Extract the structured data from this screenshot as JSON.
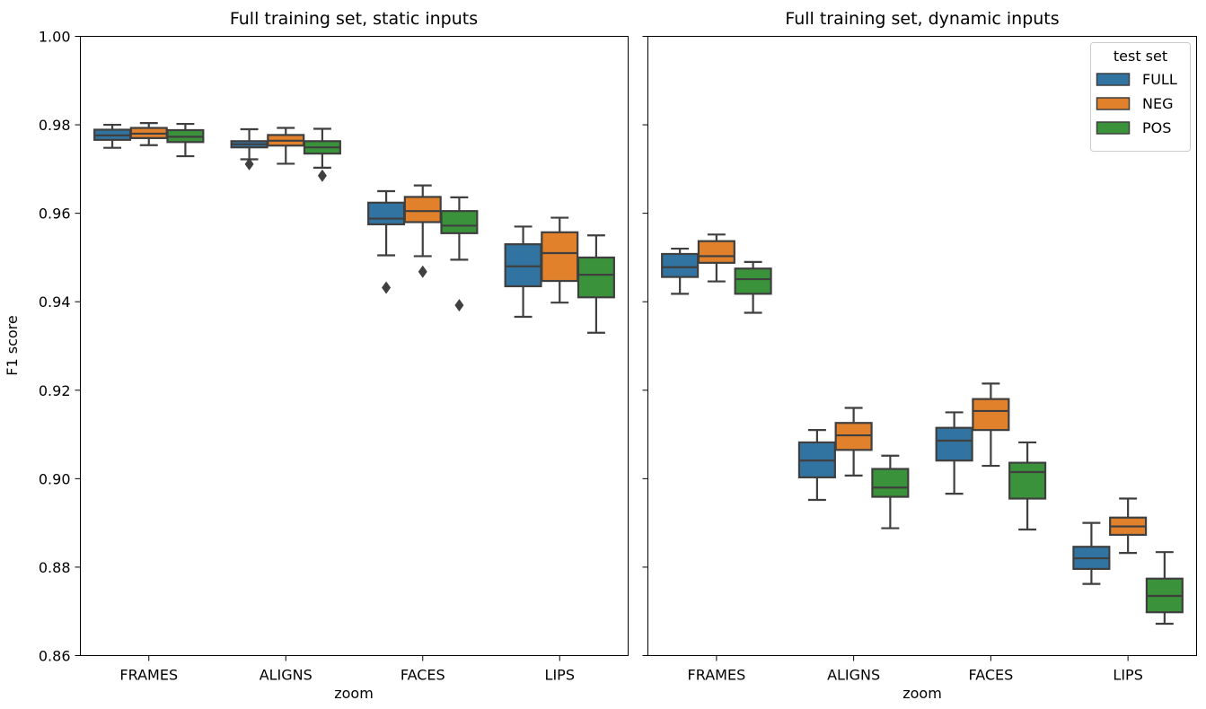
{
  "chart_data": [
    {
      "type": "box",
      "title": "Full training set, static inputs",
      "xlabel": "zoom",
      "ylabel": "F1 score",
      "ylim": [
        0.86,
        1.0
      ],
      "yticks": [
        "0.86",
        "0.88",
        "0.90",
        "0.92",
        "0.94",
        "0.96",
        "0.98",
        "1.00"
      ],
      "categories": [
        "FRAMES",
        "ALIGNS",
        "FACES",
        "LIPS"
      ],
      "series": [
        {
          "name": "FULL",
          "boxes": [
            {
              "whislo": 0.9748,
              "q1": 0.9766,
              "med": 0.9776,
              "q3": 0.9789,
              "whishi": 0.98,
              "fliers": []
            },
            {
              "whislo": 0.9722,
              "q1": 0.9749,
              "med": 0.9756,
              "q3": 0.9763,
              "whishi": 0.979,
              "fliers": [
                0.9711
              ]
            },
            {
              "whislo": 0.9505,
              "q1": 0.9575,
              "med": 0.9588,
              "q3": 0.9624,
              "whishi": 0.965,
              "fliers": [
                0.9432
              ]
            },
            {
              "whislo": 0.9366,
              "q1": 0.9435,
              "med": 0.948,
              "q3": 0.953,
              "whishi": 0.957,
              "fliers": []
            }
          ]
        },
        {
          "name": "NEG",
          "boxes": [
            {
              "whislo": 0.9754,
              "q1": 0.977,
              "med": 0.978,
              "q3": 0.9793,
              "whishi": 0.9804,
              "fliers": []
            },
            {
              "whislo": 0.9712,
              "q1": 0.9753,
              "med": 0.9764,
              "q3": 0.9777,
              "whishi": 0.9793,
              "fliers": []
            },
            {
              "whislo": 0.9503,
              "q1": 0.958,
              "med": 0.9605,
              "q3": 0.9637,
              "whishi": 0.9663,
              "fliers": [
                0.9468
              ]
            },
            {
              "whislo": 0.9398,
              "q1": 0.9447,
              "med": 0.951,
              "q3": 0.9557,
              "whishi": 0.959,
              "fliers": []
            }
          ]
        },
        {
          "name": "POS",
          "boxes": [
            {
              "whislo": 0.9729,
              "q1": 0.9761,
              "med": 0.9773,
              "q3": 0.9788,
              "whishi": 0.9802,
              "fliers": []
            },
            {
              "whislo": 0.9703,
              "q1": 0.9735,
              "med": 0.9749,
              "q3": 0.9763,
              "whishi": 0.9791,
              "fliers": [
                0.9685
              ]
            },
            {
              "whislo": 0.9495,
              "q1": 0.9555,
              "med": 0.9572,
              "q3": 0.9605,
              "whishi": 0.9636,
              "fliers": [
                0.9392
              ]
            },
            {
              "whislo": 0.933,
              "q1": 0.941,
              "med": 0.9461,
              "q3": 0.95,
              "whishi": 0.955,
              "fliers": []
            }
          ]
        }
      ]
    },
    {
      "type": "box",
      "title": "Full training set, dynamic inputs",
      "xlabel": "zoom",
      "ylabel": "",
      "ylim": [
        0.86,
        1.0
      ],
      "categories": [
        "FRAMES",
        "ALIGNS",
        "FACES",
        "LIPS"
      ],
      "legend": {
        "title": "test set",
        "position": "top-right",
        "entries": [
          "FULL",
          "NEG",
          "POS"
        ]
      },
      "series": [
        {
          "name": "FULL",
          "boxes": [
            {
              "whislo": 0.9418,
              "q1": 0.9456,
              "med": 0.9478,
              "q3": 0.9508,
              "whishi": 0.952,
              "fliers": []
            },
            {
              "whislo": 0.8952,
              "q1": 0.9003,
              "med": 0.9041,
              "q3": 0.9082,
              "whishi": 0.911,
              "fliers": []
            },
            {
              "whislo": 0.8966,
              "q1": 0.9041,
              "med": 0.9086,
              "q3": 0.9115,
              "whishi": 0.915,
              "fliers": []
            },
            {
              "whislo": 0.8762,
              "q1": 0.8796,
              "med": 0.882,
              "q3": 0.8846,
              "whishi": 0.89,
              "fliers": []
            }
          ]
        },
        {
          "name": "NEG",
          "boxes": [
            {
              "whislo": 0.9446,
              "q1": 0.9488,
              "med": 0.9503,
              "q3": 0.9537,
              "whishi": 0.9552,
              "fliers": []
            },
            {
              "whislo": 0.9007,
              "q1": 0.9065,
              "med": 0.9098,
              "q3": 0.9126,
              "whishi": 0.916,
              "fliers": []
            },
            {
              "whislo": 0.9029,
              "q1": 0.911,
              "med": 0.9153,
              "q3": 0.918,
              "whishi": 0.9215,
              "fliers": []
            },
            {
              "whislo": 0.8832,
              "q1": 0.8873,
              "med": 0.8892,
              "q3": 0.8912,
              "whishi": 0.8955,
              "fliers": []
            }
          ]
        },
        {
          "name": "POS",
          "boxes": [
            {
              "whislo": 0.9375,
              "q1": 0.9418,
              "med": 0.9451,
              "q3": 0.9475,
              "whishi": 0.949,
              "fliers": []
            },
            {
              "whislo": 0.8888,
              "q1": 0.8959,
              "med": 0.898,
              "q3": 0.9022,
              "whishi": 0.9052,
              "fliers": []
            },
            {
              "whislo": 0.8885,
              "q1": 0.8955,
              "med": 0.9015,
              "q3": 0.9036,
              "whishi": 0.9082,
              "fliers": []
            },
            {
              "whislo": 0.8672,
              "q1": 0.8698,
              "med": 0.8735,
              "q3": 0.8774,
              "whishi": 0.8834,
              "fliers": []
            }
          ]
        }
      ]
    }
  ],
  "colors": {
    "FULL": "#3274a1",
    "NEG": "#e1812c",
    "POS": "#3a923a",
    "edge": "#3f3f3f"
  }
}
